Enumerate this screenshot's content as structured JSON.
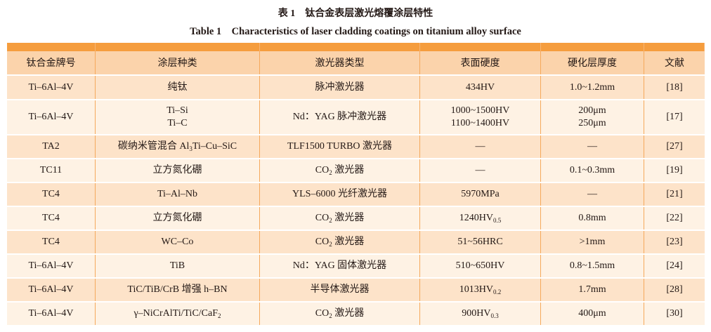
{
  "caption_zh": "表 1　钛合金表层激光熔覆涂层特性",
  "caption_en": "Table 1　Characteristics of laser cladding coatings on titanium alloy surface",
  "colors": {
    "header_bar": "#f59d3e",
    "header_row": "#fbd3ab",
    "row_odd": "#fde3c9",
    "row_even": "#fef2e4",
    "grid": "#f5a95c"
  },
  "headers": [
    "钛合金牌号",
    "涂层种类",
    "激光器类型",
    "表面硬度",
    "硬化层厚度",
    "文献"
  ],
  "rows": [
    [
      [
        [
          "Ti–6Al–4V"
        ]
      ],
      [
        [
          "纯钛"
        ]
      ],
      [
        [
          "脉冲激光器"
        ]
      ],
      [
        [
          "434HV"
        ]
      ],
      [
        [
          "1.0~1.2mm"
        ]
      ],
      [
        [
          "[18]"
        ]
      ]
    ],
    [
      [
        [
          "Ti–6Al–4V"
        ]
      ],
      [
        [
          "Ti–Si"
        ],
        [
          "Ti–C"
        ]
      ],
      [
        [
          "Nd：YAG 脉冲激光器"
        ]
      ],
      [
        [
          "1000~1500HV"
        ],
        [
          "1100~1400HV"
        ]
      ],
      [
        [
          "200μm"
        ],
        [
          "250μm"
        ]
      ],
      [
        [
          "[17]"
        ]
      ]
    ],
    [
      [
        [
          "TA2"
        ]
      ],
      [
        [
          "碳纳米管混合 Al",
          "3",
          "Ti–Cu–SiC"
        ]
      ],
      [
        [
          "TLF1500 TURBO 激光器"
        ]
      ],
      [
        [
          "—"
        ]
      ],
      [
        [
          "—"
        ]
      ],
      [
        [
          "[27]"
        ]
      ]
    ],
    [
      [
        [
          "TC11"
        ]
      ],
      [
        [
          "立方氮化硼"
        ]
      ],
      [
        [
          "CO",
          "2",
          " 激光器"
        ]
      ],
      [
        [
          "—"
        ]
      ],
      [
        [
          "0.1~0.3mm"
        ]
      ],
      [
        [
          "[19]"
        ]
      ]
    ],
    [
      [
        [
          "TC4"
        ]
      ],
      [
        [
          "Ti–Al–Nb"
        ]
      ],
      [
        [
          "YLS–6000 光纤激光器"
        ]
      ],
      [
        [
          "5970MPa"
        ]
      ],
      [
        [
          "—"
        ]
      ],
      [
        [
          "[21]"
        ]
      ]
    ],
    [
      [
        [
          "TC4"
        ]
      ],
      [
        [
          "立方氮化硼"
        ]
      ],
      [
        [
          "CO",
          "2",
          " 激光器"
        ]
      ],
      [
        [
          "1240HV",
          "0.5"
        ]
      ],
      [
        [
          "0.8mm"
        ]
      ],
      [
        [
          "[22]"
        ]
      ]
    ],
    [
      [
        [
          "TC4"
        ]
      ],
      [
        [
          "WC–Co"
        ]
      ],
      [
        [
          "CO",
          "2",
          " 激光器"
        ]
      ],
      [
        [
          "51~56HRC"
        ]
      ],
      [
        [
          ">1mm"
        ]
      ],
      [
        [
          "[23]"
        ]
      ]
    ],
    [
      [
        [
          "Ti–6Al–4V"
        ]
      ],
      [
        [
          "TiB"
        ]
      ],
      [
        [
          "Nd：YAG 固体激光器"
        ]
      ],
      [
        [
          "510~650HV"
        ]
      ],
      [
        [
          "0.8~1.5mm"
        ]
      ],
      [
        [
          "[24]"
        ]
      ]
    ],
    [
      [
        [
          "Ti–6Al–4V"
        ]
      ],
      [
        [
          "TiC/TiB/CrB 增强 h–BN"
        ]
      ],
      [
        [
          "半导体激光器"
        ]
      ],
      [
        [
          "1013HV",
          "0.2"
        ]
      ],
      [
        [
          "1.7mm"
        ]
      ],
      [
        [
          "[28]"
        ]
      ]
    ],
    [
      [
        [
          "Ti–6Al–4V"
        ]
      ],
      [
        [
          "γ–NiCrAlTi/TiC/CaF",
          "2"
        ]
      ],
      [
        [
          "CO",
          "2",
          " 激光器"
        ]
      ],
      [
        [
          "900HV",
          "0.3"
        ]
      ],
      [
        [
          "400μm"
        ]
      ],
      [
        [
          "[30]"
        ]
      ]
    ]
  ]
}
